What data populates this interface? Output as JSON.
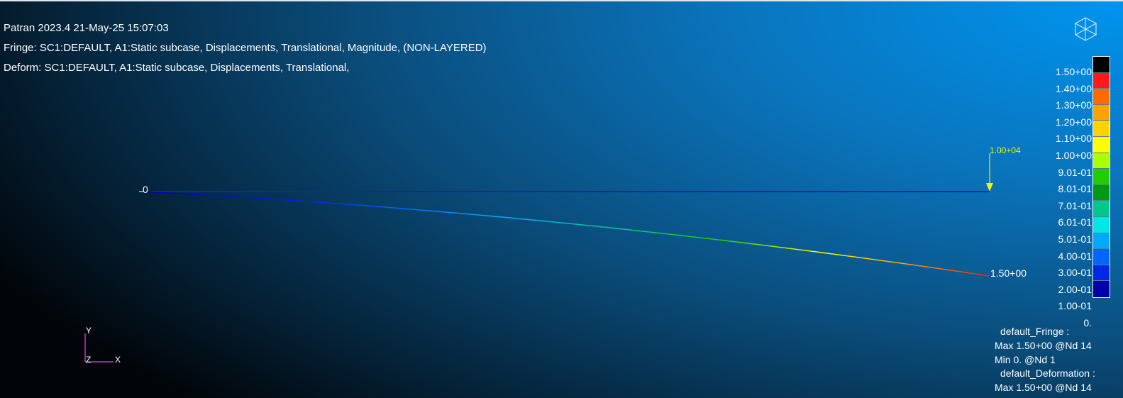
{
  "header": {
    "line1": "Patran 2023.4 21-May-25 15:07:03",
    "line2": "Fringe: SC1:DEFAULT, A1:Static subcase, Displacements, Translational, Magnitude, (NON-LAYERED)",
    "line3": "Deform: SC1:DEFAULT, A1:Static subcase, Displacements, Translational,"
  },
  "model": {
    "origin_label": "0",
    "load_label": "1.00+04",
    "tip_label": "1.50+00",
    "colors": {
      "undeformed": "#0a2bb0",
      "load_arrow": "#f2f20a"
    }
  },
  "legend": {
    "labels": [
      "1.50+00",
      "1.40+00",
      "1.30+00",
      "1.20+00",
      "1.10+00",
      "1.00+00",
      "9.01-01",
      "8.01-01",
      "7.01-01",
      "6.01-01",
      "5.01-01",
      "4.00-01",
      "3.00-01",
      "2.00-01",
      "1.00-01",
      "0."
    ],
    "colors": [
      "#000000",
      "#ff1a1a",
      "#ff6a00",
      "#ffa200",
      "#ffd200",
      "#ffff00",
      "#aaff00",
      "#22cc00",
      "#009a10",
      "#00c88c",
      "#00e6e6",
      "#00aaff",
      "#0066ff",
      "#0028e6",
      "#0000a8"
    ]
  },
  "summary": {
    "fringe_title": "default_Fringe :",
    "fringe_max": "Max 1.50+00 @Nd 14",
    "fringe_min": "Min  0. @Nd 1",
    "deform_title": "default_Deformation :",
    "deform_max": "Max 1.50+00 @Nd 14"
  },
  "triad": {
    "y": "Y",
    "x": "X",
    "z": "Z",
    "color": "#c832c8"
  }
}
